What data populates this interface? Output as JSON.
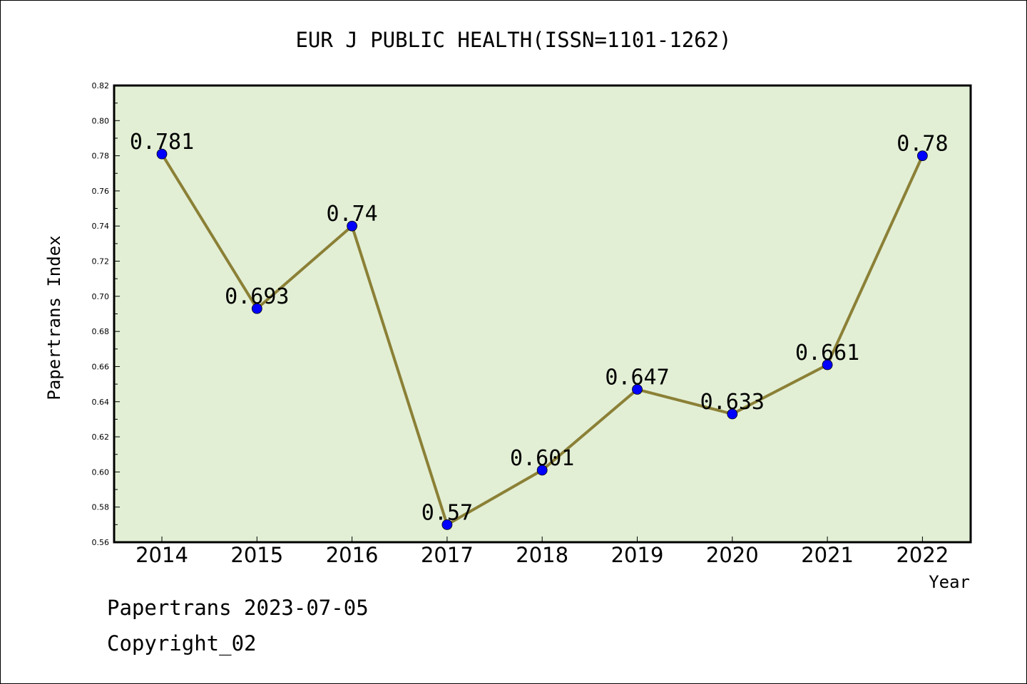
{
  "chart_data": {
    "type": "line",
    "title": "EUR J PUBLIC HEALTH(ISSN=1101-1262)",
    "xlabel": "Year",
    "ylabel": "Papertrans Index",
    "categories": [
      "2014",
      "2015",
      "2016",
      "2017",
      "2018",
      "2019",
      "2020",
      "2021",
      "2022"
    ],
    "series": [
      {
        "values": [
          0.781,
          0.693,
          0.74,
          0.57,
          0.601,
          0.647,
          0.633,
          0.661,
          0.78
        ],
        "labels": [
          "0.781",
          "0.693",
          "0.74",
          "0.57",
          "0.601",
          "0.647",
          "0.633",
          "0.661",
          "0.78"
        ]
      }
    ],
    "ylim": [
      0.56,
      0.82
    ],
    "yticks": [
      "0.56",
      "0.58",
      "0.60",
      "0.62",
      "0.64",
      "0.66",
      "0.68",
      "0.70",
      "0.72",
      "0.74",
      "0.76",
      "0.78",
      "0.80",
      "0.82"
    ],
    "grid": false,
    "colors": {
      "plot_background": "#e2efd5",
      "line": "#8b8036",
      "marker": "#0000ff"
    }
  },
  "footer": {
    "date_text": "Papertrans 2023-07-05",
    "copyright_text": "Copyright_02"
  }
}
